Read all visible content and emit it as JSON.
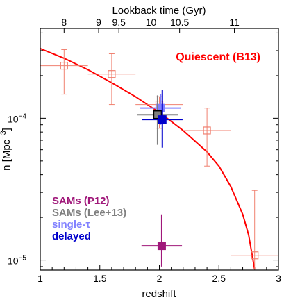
{
  "chart_data": {
    "type": "scatter",
    "title": "",
    "xlabel": "redshift",
    "ylabel_prefix": "n [Mpc",
    "ylabel_exponent": "−3",
    "ylabel_suffix": "]",
    "top_xlabel": "Lookback time (Gyr)",
    "xlim": [
      1.0,
      3.0
    ],
    "ylim": [
      8.5e-06,
      0.00043
    ],
    "yscale": "log",
    "x_ticks": [
      {
        "value": 1.0,
        "label": "1"
      },
      {
        "value": 1.5,
        "label": "1.5"
      },
      {
        "value": 2.0,
        "label": "2"
      },
      {
        "value": 2.5,
        "label": "2.5"
      },
      {
        "value": 3.0,
        "label": "3"
      }
    ],
    "y_ticks": [
      {
        "value": 0.0001,
        "base": "10",
        "exponent": "−4"
      },
      {
        "value": 1e-05,
        "base": "10",
        "exponent": "−5"
      }
    ],
    "top_ticks": [
      {
        "z": 1.2,
        "label": "8"
      },
      {
        "z": 1.49,
        "label": "9"
      },
      {
        "z": 1.66,
        "label": "9.5"
      },
      {
        "z": 1.93,
        "label": "10"
      },
      {
        "z": 2.17,
        "label": "10.5"
      },
      {
        "z": 2.63,
        "label": "11"
      }
    ],
    "quiescent_curve": {
      "name": "Quiescent (B13)",
      "color": "#ff0000",
      "points": [
        [
          1.0,
          0.00031
        ],
        [
          1.2,
          0.000265
        ],
        [
          1.4,
          0.00022
        ],
        [
          1.6,
          0.000178
        ],
        [
          1.8,
          0.000142
        ],
        [
          2.0,
          0.00011
        ],
        [
          2.2,
          8.2e-05
        ],
        [
          2.4,
          5.8e-05
        ],
        [
          2.5,
          4.6e-05
        ],
        [
          2.6,
          3.3e-05
        ],
        [
          2.7,
          2.1e-05
        ],
        [
          2.75,
          1.5e-05
        ],
        [
          2.8,
          8.6e-06
        ]
      ]
    },
    "quiescent_data": {
      "color": "#f08070",
      "points": [
        {
          "x": 1.2,
          "y": 0.000235,
          "xerr": 0.2,
          "ylo": 0.000148,
          "yhi": 0.000305
        },
        {
          "x": 1.6,
          "y": 0.000205,
          "xerr": 0.2,
          "ylo": 0.000125,
          "yhi": 0.000285
        },
        {
          "x": 2.0,
          "y": 0.000125,
          "xerr": 0.2,
          "ylo": 8.5e-05,
          "yhi": 0.000142
        },
        {
          "x": 2.4,
          "y": 8.2e-05,
          "xerr": 0.2,
          "ylo": 4.6e-05,
          "yhi": 0.000118
        },
        {
          "x": 2.8,
          "y": 1.08e-05,
          "xerr": 0.2,
          "ylo": 8.5e-06,
          "yhi": 3.1e-05
        }
      ]
    },
    "models": [
      {
        "name": "single-τ",
        "color": "#8080ff",
        "x": 2.01,
        "y": 0.000118,
        "xerr": 0.17,
        "ylo": 9e-05,
        "yhi": 0.000148
      },
      {
        "name": "SAMs (Lee+13)",
        "color": "#808080",
        "x": 1.985,
        "y": 0.000106,
        "xerr": 0.17,
        "ylo": 6.5e-05,
        "yhi": 0.000145
      },
      {
        "name": "delayed",
        "color": "#0000cc",
        "x": 2.025,
        "y": 9.8e-05,
        "xerr": 0.17,
        "ylo": 6.2e-05,
        "yhi": 0.000158
      },
      {
        "name": "SAMs (P12)",
        "color": "#a0187a",
        "x": 2.02,
        "y": 1.26e-05,
        "xerr": 0.17,
        "ylo": 9e-06,
        "yhi": 2.1e-05
      }
    ],
    "legend": [
      {
        "name": "SAMs (P12)",
        "color": "#a0187a"
      },
      {
        "name": "SAMs (Lee+13)",
        "color": "#808080"
      },
      {
        "name": "single-τ",
        "color": "#8080ff"
      },
      {
        "name": "delayed",
        "color": "#0000cc"
      }
    ],
    "legend_position": "lower-left",
    "curve_label_position": "top-right",
    "grid": false
  }
}
